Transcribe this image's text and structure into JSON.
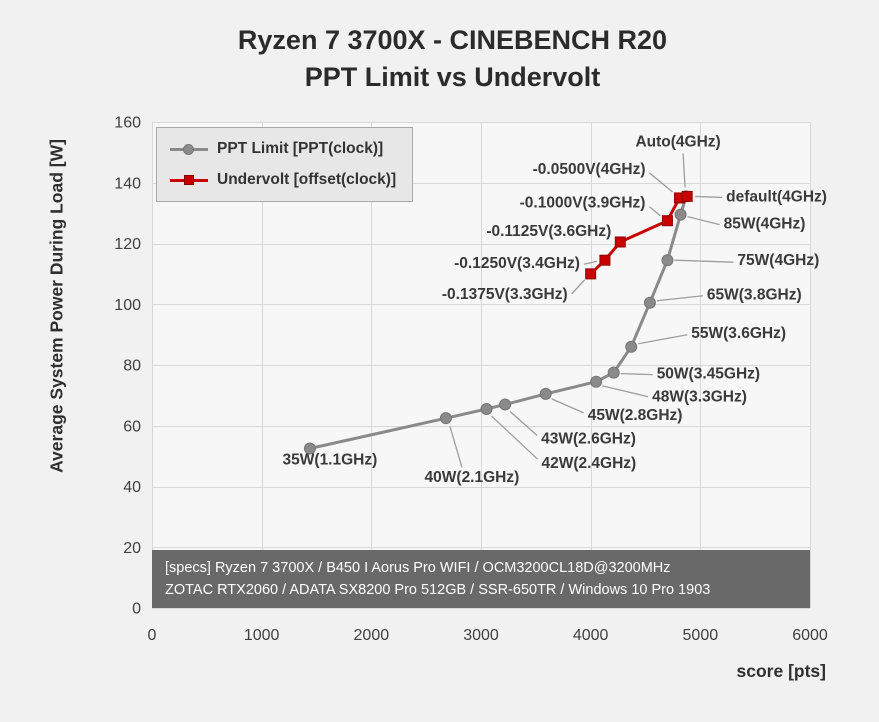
{
  "page": {
    "background": "#f1f1f1"
  },
  "chart_data": {
    "type": "line",
    "title_line1": "Ryzen 7 3700X - CINEBENCH R20",
    "title_line2": "PPT Limit vs Undervolt",
    "x_axis": {
      "label": "score [pts]",
      "min": 0,
      "max": 6000,
      "ticks": [
        0,
        1000,
        2000,
        3000,
        4000,
        5000,
        6000
      ]
    },
    "y_axis": {
      "label": "Average System Power During Load [W]",
      "min": 0,
      "max": 160,
      "ticks": [
        0,
        20,
        40,
        60,
        80,
        100,
        120,
        140,
        160
      ]
    },
    "grid": true,
    "legend_position": "top-left",
    "series": [
      {
        "name": "PPT Limit [PPT(clock)]",
        "marker": "circle",
        "color": "#8a8a8a",
        "edge_color": "#757575",
        "points": [
          {
            "x": 1440,
            "y": 52.5,
            "label": "35W(1.1GHz)",
            "lp": [
              20,
              16
            ],
            "anchor": "middle"
          },
          {
            "x": 2680,
            "y": 62.5,
            "label": "40W(2.1GHz)",
            "lp": [
              26,
              64
            ],
            "anchor": "middle",
            "leader": [
              16,
              49,
              4,
              8
            ]
          },
          {
            "x": 3050,
            "y": 65.5,
            "label": "42W(2.4GHz)",
            "lp": [
              55,
              59
            ],
            "anchor": "start",
            "leader": [
              51,
              50,
              5,
              7
            ]
          },
          {
            "x": 3220,
            "y": 67,
            "label": "43W(2.6GHz)",
            "lp": [
              36,
              39
            ],
            "anchor": "start",
            "leader": [
              32,
              31,
              5,
              7
            ]
          },
          {
            "x": 3590,
            "y": 70.5,
            "label": "45W(2.8GHz)",
            "lp": [
              42,
              26
            ],
            "anchor": "start",
            "leader": [
              38,
              19,
              6,
              5
            ]
          },
          {
            "x": 4050,
            "y": 74.5,
            "label": "48W(3.3GHz)",
            "lp": [
              56,
              20
            ],
            "anchor": "start",
            "leader": [
              52,
              15,
              6,
              4
            ]
          },
          {
            "x": 4210,
            "y": 77.5,
            "label": "50W(3.45GHz)",
            "lp": [
              43,
              6
            ],
            "anchor": "start",
            "leader": [
              39,
              2,
              7,
              1
            ]
          },
          {
            "x": 4370,
            "y": 86,
            "label": "55W(3.6GHz)",
            "lp": [
              60,
              -9
            ],
            "anchor": "start",
            "leader": [
              56,
              -12,
              7,
              -3
            ]
          },
          {
            "x": 4540,
            "y": 100.5,
            "label": "65W(3.8GHz)",
            "lp": [
              57,
              -3
            ],
            "anchor": "start",
            "leader": [
              53,
              -7,
              7,
              -2
            ]
          },
          {
            "x": 4700,
            "y": 114.5,
            "label": "75W(4GHz)",
            "lp": [
              70,
              5
            ],
            "anchor": "start",
            "leader": [
              66,
              2,
              7,
              0
            ]
          },
          {
            "x": 4820,
            "y": 129.5,
            "label": "85W(4GHz)",
            "lp": [
              43,
              14
            ],
            "anchor": "start",
            "leader": [
              39,
              10,
              7,
              2
            ]
          },
          {
            "x": 4870,
            "y": 135.5,
            "label": "Auto(4GHz)",
            "lp": [
              -8,
              -50
            ],
            "anchor": "middle",
            "leader": [
              -3,
              -43,
              -1,
              -9
            ]
          }
        ]
      },
      {
        "name": "Undervolt [offset(clock)]",
        "marker": "square",
        "color": "#c90000",
        "edge_color": "#900000",
        "points": [
          {
            "x": 4000,
            "y": 110,
            "label": "-0.1375V(3.3GHz)",
            "lp": [
              -23,
              25
            ],
            "anchor": "end",
            "leader": [
              -19,
              20,
              -6,
              6
            ]
          },
          {
            "x": 4130,
            "y": 114.5,
            "label": "-0.1250V(3.4GHz)",
            "lp": [
              -25,
              8
            ],
            "anchor": "end",
            "leader": [
              -21,
              4,
              -8,
              1
            ]
          },
          {
            "x": 4270,
            "y": 120.5,
            "label": "-0.1125V(3.6GHz)",
            "lp": [
              -9,
              -6
            ],
            "anchor": "end"
          },
          {
            "x": 4700,
            "y": 127.5,
            "label": "-0.1000V(3.9GHz)",
            "lp": [
              -22,
              -13
            ],
            "anchor": "end",
            "leader": [
              -18,
              -14,
              -7,
              -5
            ]
          },
          {
            "x": 4810,
            "y": 135,
            "label": "-0.0500V(4GHz)",
            "lp": [
              -34,
              -24
            ],
            "anchor": "end",
            "leader": [
              -30,
              -25,
              -7,
              -6
            ]
          },
          {
            "x": 4880,
            "y": 135.5,
            "label": "default(4GHz)",
            "lp": [
              39,
              5
            ],
            "anchor": "start",
            "leader": [
              35,
              1,
              8,
              0
            ]
          }
        ]
      }
    ],
    "specs_box": {
      "line1": "[specs] Ryzen 7 3700X / B450 I Aorus Pro WIFI / OCM3200CL18D@3200MHz",
      "line2": "ZOTAC RTX2060 / ADATA SX8200 Pro 512GB / SSR-650TR / Windows 10 Pro 1903"
    },
    "colors": {
      "grid": "#d8d8d8",
      "plot_bg": "#f7f7f7",
      "tick_text": "#3f3f3f",
      "label_text": "#3a3a3a",
      "leader": "#9e9e9e",
      "specs_bg": "#696969",
      "specs_text": "#ffffff"
    }
  }
}
